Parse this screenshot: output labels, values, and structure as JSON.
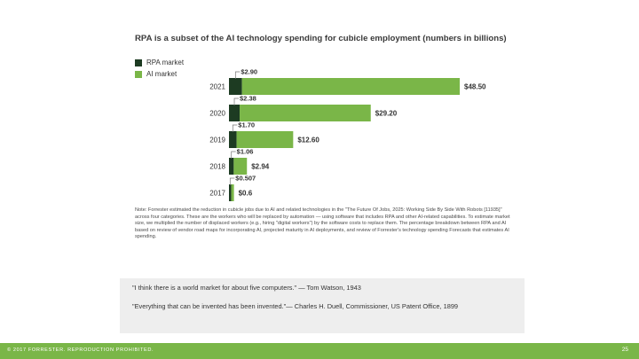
{
  "chart_data": {
    "type": "bar",
    "orientation": "horizontal",
    "stacked": true,
    "title": "RPA is a subset of the AI technology spending for cubicle employment (numbers in billions)",
    "categories": [
      "2021",
      "2020",
      "2019",
      "2018",
      "2017"
    ],
    "series": [
      {
        "name": "RPA market",
        "color": "#1d3b22",
        "values": [
          2.9,
          2.38,
          1.7,
          1.06,
          0.507
        ]
      },
      {
        "name": "AI market",
        "color": "#7ab648",
        "values": [
          48.5,
          29.2,
          12.6,
          2.94,
          0.6
        ]
      }
    ],
    "rpa_labels": [
      "$2.90",
      "$2.38",
      "$1.70",
      "$1.06",
      "$0.507"
    ],
    "ai_labels": [
      "$48.50",
      "$29.20",
      "$12.60",
      "$2.94",
      "$0.6"
    ],
    "xlim": [
      0,
      51.4
    ],
    "grid": false,
    "legend": "top-left"
  },
  "note": "Note: Forrester estimated the reduction in cubicle jobs due to AI and related technologies in the \"The Future Of Jobs, 2025: Working Side By Side With Robots [11935]\" across four categories. These are the workers who will be replaced by automation — using software that includes RPA and other AI-related capabilities. To estimate market size, we multiplied the number of displaced workers (e.g., hiring \"digital workers\") by the software costs to replace them. The percentage breakdown between RPA and AI based on review of vendor road maps for incorporating AI, projected maturity in AI deployments, and review of Forrester's technology spending Forecasts that estimates AI spending.",
  "quotes": [
    "\"I think there is a world market for about five computers.\" — Tom Watson, 1943",
    "\"Everything that can be invented has been invented.\"— Charles H. Duell, Commissioner, US Patent Office, 1899"
  ],
  "footer": {
    "copyright": "© 2017 FORRESTER. REPRODUCTION PROHIBITED.",
    "page_number": "25"
  }
}
